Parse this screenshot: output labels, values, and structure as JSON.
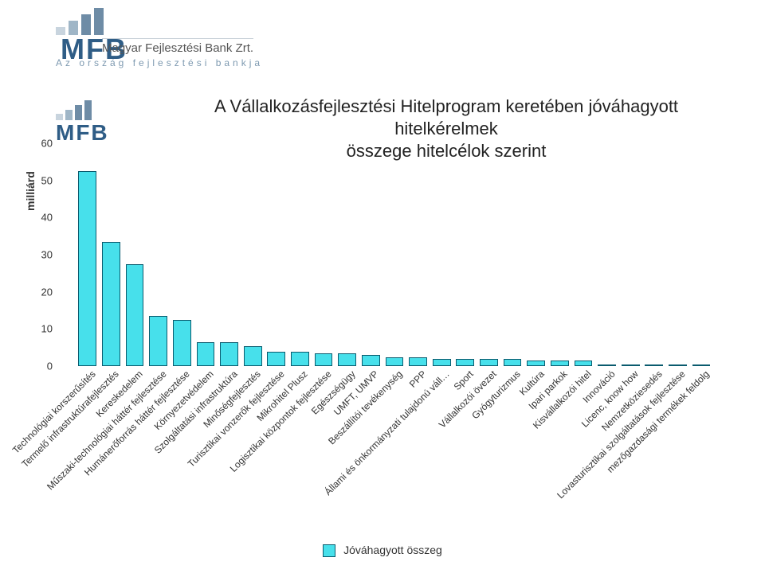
{
  "header": {
    "brand": "MFB",
    "subline": "Magyar Fejlesztési Bank Zrt.",
    "tagline": "Az ország fejlesztési bankja"
  },
  "chart": {
    "type": "bar",
    "title_line1": "A Vállalkozásfejlesztési Hitelprogram keretében jóváhagyott hitelkérelmek",
    "title_line2": "összege  hitelcélok szerint",
    "title_fontsize": 22,
    "ylabel": "milliárd",
    "ylim": [
      0,
      60
    ],
    "ytick_step": 10,
    "yticks": [
      "0",
      "10",
      "20",
      "30",
      "40",
      "50",
      "60"
    ],
    "bar_color": "#47e0eb",
    "bar_border": "#0a5b6e",
    "background_color": "#ffffff",
    "bar_width": 0.7,
    "label_fontsize": 12,
    "legend_label": "Jóváhagyott összeg",
    "categories": [
      "Technológiai korszerűsítés",
      "Termelő infrastruktúrafejlesztés",
      "Kereskedelem",
      "Műszaki-technológiai háttér fejlesztése",
      "Humánerőforrás háttér fejlesztése",
      "Környezetvédelem",
      "Szolgáltatási infrastruktúra",
      "Minőségfejlesztés",
      "Turisztikai vonzerők fejlesztése",
      "Mikrohitel Plusz",
      "Logisztikai központok fejlesztése",
      "Egészségügy",
      "UMFT, UMVP",
      "Beszállítói tevékenység",
      "PPP",
      "Állami és önkormányzati tulajdonú váll…",
      "Sport",
      "Vállalkozói övezet",
      "Gyógyturizmus",
      "Kultúra",
      "Ipari parkok",
      "Kisvállalkozói hitel",
      "Innováció",
      "Licenc, know how",
      "Nemzetköziesedés",
      "Lovasturisztikai szolgáltatások fejlesztése",
      "mezőgazdasági termékek feldolg"
    ],
    "values": [
      52,
      33,
      27,
      13,
      12,
      6,
      6,
      5,
      3.5,
      3.5,
      3,
      3,
      2.5,
      2,
      2,
      1.5,
      1.5,
      1.5,
      1.5,
      1,
      1,
      1,
      0,
      0,
      0,
      0,
      0
    ]
  }
}
